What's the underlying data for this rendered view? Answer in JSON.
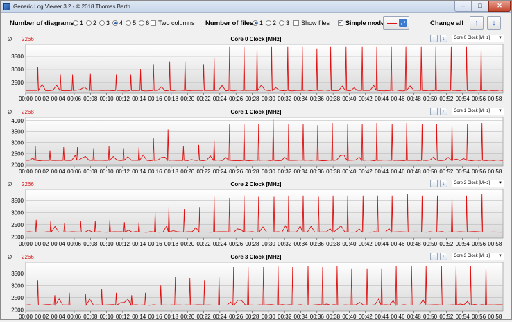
{
  "window": {
    "title": "Generic Log Viewer 3.2 - © 2018 Thomas Barth",
    "minimize": "–",
    "maximize": "□",
    "close": "✕"
  },
  "toolbar": {
    "diagrams_label": "Number of diagrams",
    "diagram_options": [
      "1",
      "2",
      "3",
      "4",
      "5",
      "6"
    ],
    "diagram_selected": "4",
    "two_columns_label": "Two columns",
    "files_label": "Number of files",
    "file_options": [
      "1",
      "2",
      "3"
    ],
    "file_selected": "1",
    "show_files_label": "Show files",
    "simple_mode_label": "Simple mode",
    "simple_mode_checked": "✓",
    "change_all_label": "Change all",
    "line_color": "#e01010",
    "up_icon": "up-arrow-icon",
    "down_icon": "down-arrow-icon"
  },
  "panels": [
    {
      "avg_symbol": "Ø",
      "avg_value": "2266",
      "title": "Core 0 Clock [MHz]",
      "select_value": "Core 0 Clock [MHz]"
    },
    {
      "avg_symbol": "Ø",
      "avg_value": "2268",
      "title": "Core 1 Clock [MHz]",
      "select_value": "Core 1 Clock [MHz]"
    },
    {
      "avg_symbol": "Ø",
      "avg_value": "2266",
      "title": "Core 2 Clock [MHz]",
      "select_value": "Core 2 Clock [MHz]"
    },
    {
      "avg_symbol": "Ø",
      "avg_value": "2266",
      "title": "Core 3 Clock [MHz]",
      "select_value": "Core 3 Clock [MHz]"
    }
  ],
  "chart_data": [
    {
      "type": "line",
      "title": "Core 0 Clock [MHz]",
      "x_ticks": [
        "00:00",
        "00:02",
        "00:04",
        "00:06",
        "00:08",
        "00:10",
        "00:12",
        "00:14",
        "00:16",
        "00:18",
        "00:20",
        "00:22",
        "00:24",
        "00:26",
        "00:28",
        "00:30",
        "00:32",
        "00:34",
        "00:36",
        "00:38",
        "00:40",
        "00:42",
        "00:44",
        "00:46",
        "00:48",
        "00:50",
        "00:52",
        "00:54",
        "00:56",
        "00:58"
      ],
      "xlim": [
        0,
        59
      ],
      "y_ticks": [
        2500,
        3000,
        3500
      ],
      "ylim": [
        2100,
        3950
      ],
      "baseline": 2200,
      "color": "#e01010",
      "spikes_minutes": [
        1.5,
        4.3,
        5.8,
        8.0,
        11.2,
        13.0,
        14.2,
        15.8,
        17.8,
        19.7,
        22.0,
        23.3,
        25.2,
        27.0,
        28.6,
        30.4,
        32.4,
        34.2,
        36.0,
        37.7,
        39.6,
        41.6,
        43.4,
        45.2,
        47.0,
        48.9,
        50.7,
        52.6,
        54.5,
        56.3
      ],
      "spikes_values": [
        3100,
        2800,
        2800,
        2850,
        2800,
        2800,
        3000,
        3200,
        3300,
        3300,
        3200,
        3450,
        3850,
        3850,
        3850,
        3850,
        3850,
        3850,
        3800,
        3850,
        3850,
        3850,
        3850,
        3850,
        3850,
        3850,
        3850,
        3850,
        3850,
        3850
      ]
    },
    {
      "type": "line",
      "title": "Core 1 Clock [MHz]",
      "x_ticks": [
        "00:00",
        "00:02",
        "00:04",
        "00:06",
        "00:08",
        "00:10",
        "00:12",
        "00:14",
        "00:16",
        "00:18",
        "00:20",
        "00:22",
        "00:24",
        "00:26",
        "00:28",
        "00:30",
        "00:32",
        "00:34",
        "00:36",
        "00:38",
        "00:40",
        "00:42",
        "00:44",
        "00:46",
        "00:48",
        "00:50",
        "00:52",
        "00:54",
        "00:56",
        "00:58"
      ],
      "xlim": [
        0,
        59
      ],
      "y_ticks": [
        2000,
        2500,
        3000,
        3500,
        4000
      ],
      "ylim": [
        1950,
        4150
      ],
      "baseline": 2200,
      "color": "#e01010",
      "spikes_minutes": [
        1.2,
        3.0,
        4.7,
        6.4,
        8.4,
        10.3,
        12.1,
        14.0,
        15.8,
        17.6,
        19.5,
        21.4,
        23.3,
        25.2,
        27.0,
        28.8,
        30.6,
        32.5,
        34.3,
        36.1,
        37.9,
        39.8,
        41.6,
        43.4,
        45.3,
        47.1,
        49.0,
        50.8,
        52.7,
        54.6,
        56.4
      ],
      "spikes_values": [
        2850,
        2650,
        2800,
        2800,
        2750,
        2850,
        2750,
        2800,
        3200,
        3600,
        2850,
        2900,
        3100,
        3850,
        3850,
        3850,
        4050,
        3850,
        3850,
        3800,
        3900,
        3850,
        3850,
        3900,
        3850,
        3900,
        3850,
        3850,
        3850,
        3850,
        3900
      ]
    },
    {
      "type": "line",
      "title": "Core 2 Clock [MHz]",
      "x_ticks": [
        "00:00",
        "00:02",
        "00:04",
        "00:06",
        "00:08",
        "00:10",
        "00:12",
        "00:14",
        "00:16",
        "00:18",
        "00:20",
        "00:22",
        "00:24",
        "00:26",
        "00:28",
        "00:30",
        "00:32",
        "00:34",
        "00:36",
        "00:38",
        "00:40",
        "00:42",
        "00:44",
        "00:46",
        "00:48",
        "00:50",
        "00:52",
        "00:54",
        "00:56",
        "00:58"
      ],
      "xlim": [
        0,
        59
      ],
      "y_ticks": [
        2000,
        2500,
        3000,
        3500
      ],
      "ylim": [
        1950,
        3950
      ],
      "baseline": 2200,
      "color": "#e01010",
      "spikes_minutes": [
        1.3,
        3.1,
        4.8,
        6.8,
        8.6,
        10.4,
        12.2,
        14.0,
        16.0,
        17.7,
        19.6,
        21.5,
        23.3,
        25.2,
        27.0,
        28.8,
        30.7,
        32.5,
        34.3,
        36.2,
        38.0,
        39.8,
        41.7,
        43.5,
        45.3,
        47.2,
        49.0,
        50.9,
        52.7,
        54.5,
        56.4
      ],
      "spikes_values": [
        2700,
        2650,
        2550,
        2650,
        2650,
        2700,
        2600,
        2600,
        3000,
        3200,
        3150,
        3200,
        3650,
        3600,
        3700,
        3650,
        3650,
        3700,
        3700,
        3650,
        3700,
        3700,
        3700,
        3700,
        3700,
        3750,
        3700,
        3700,
        3650,
        3700,
        3750
      ]
    },
    {
      "type": "line",
      "title": "Core 3 Clock [MHz]",
      "x_ticks": [
        "00:00",
        "00:02",
        "00:04",
        "00:06",
        "00:08",
        "00:10",
        "00:12",
        "00:14",
        "00:16",
        "00:18",
        "00:20",
        "00:22",
        "00:24",
        "00:26",
        "00:28",
        "00:30",
        "00:32",
        "00:34",
        "00:36",
        "00:38",
        "00:40",
        "00:42",
        "00:44",
        "00:46",
        "00:48",
        "00:50",
        "00:52",
        "00:54",
        "00:56",
        "00:58"
      ],
      "xlim": [
        0,
        59
      ],
      "y_ticks": [
        2000,
        2500,
        3000,
        3500
      ],
      "ylim": [
        1950,
        3950
      ],
      "baseline": 2200,
      "color": "#e01010",
      "spikes_minutes": [
        1.5,
        3.6,
        5.4,
        7.4,
        9.4,
        11.2,
        13.1,
        14.8,
        16.7,
        18.5,
        20.3,
        22.1,
        23.9,
        25.7,
        27.5,
        29.4,
        31.2,
        33.0,
        34.9,
        36.7,
        38.5,
        40.3,
        42.2,
        44.0,
        45.8,
        47.7,
        49.5,
        51.4,
        53.2,
        55.0,
        56.9
      ],
      "spikes_values": [
        3200,
        2600,
        2700,
        2650,
        2850,
        2700,
        2600,
        2700,
        3000,
        3350,
        3300,
        3200,
        3350,
        3750,
        3750,
        3750,
        3800,
        3750,
        3800,
        3750,
        3800,
        3700,
        3700,
        3700,
        3800,
        3800,
        3800,
        3800,
        3800,
        3800,
        3800
      ]
    }
  ]
}
